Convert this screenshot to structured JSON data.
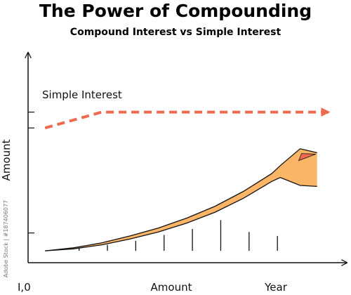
{
  "chart_data": {
    "type": "area",
    "title": "The Power of Compounding",
    "subtitle": "Compound Interest vs Simple Interest",
    "xlabel": "Amount",
    "ylabel": "Amount",
    "x_end_label": "Year",
    "origin_label": "I,0",
    "annotation": "Simple Interest",
    "side_text": "Adobe Stock | #187406077",
    "grid": false,
    "legend": "none",
    "colors": {
      "simple_interest": "#ec6a4f",
      "compound_fill": "#fbb567",
      "accent_fill": "#ef6a4f",
      "axis": "#111111"
    },
    "series": [
      {
        "name": "Simple Interest",
        "style": "dashed",
        "x": [
          0,
          2,
          10
        ],
        "y": [
          6.2,
          7.0,
          7.0
        ]
      },
      {
        "name": "",
        "style": "band-upper",
        "x": [
          0,
          1,
          2,
          3,
          4,
          5,
          6,
          7,
          8,
          8.3,
          9,
          9.6
        ],
        "y": [
          0,
          0.15,
          0.4,
          0.75,
          1.15,
          1.65,
          2.25,
          3.0,
          3.9,
          4.3,
          5.15,
          4.95
        ]
      },
      {
        "name": "",
        "style": "band-lower",
        "x": [
          0,
          1,
          2,
          3,
          4,
          5,
          6,
          7,
          8,
          8.3,
          9,
          9.6
        ],
        "y": [
          0,
          0.1,
          0.3,
          0.6,
          0.95,
          1.4,
          1.95,
          2.65,
          3.5,
          3.7,
          3.3,
          3.25
        ]
      }
    ],
    "bars": {
      "x": [
        1.2,
        2.2,
        3.2,
        4.2,
        5.2,
        6.2,
        7.2,
        8.2
      ],
      "values": [
        0.15,
        0.3,
        0.5,
        0.8,
        1.1,
        1.55,
        0.95,
        0.75
      ]
    },
    "left_ticks_y": [
      0.9,
      6.2,
      7.0
    ],
    "xlim": [
      -0.6,
      10.5
    ],
    "ylim": [
      -0.6,
      10
    ]
  }
}
